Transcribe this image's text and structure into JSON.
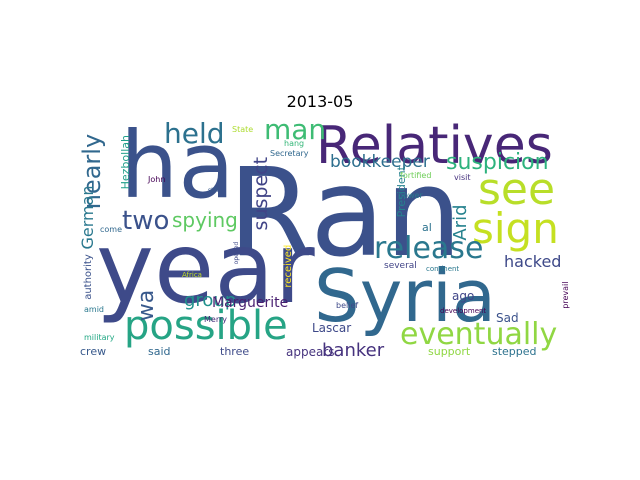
{
  "title": "2013-05",
  "words": [
    {
      "text": "Ran",
      "color": "#3b518b"
    },
    {
      "text": "year",
      "color": "#3e4a89"
    },
    {
      "text": "ha",
      "color": "#3b528b"
    },
    {
      "text": "Syria",
      "color": "#31688e"
    },
    {
      "text": "Relatives",
      "color": "#482777"
    },
    {
      "text": "possible",
      "color": "#26a485"
    },
    {
      "text": "see",
      "color": "#b8de29"
    },
    {
      "text": "sign",
      "color": "#c5e021"
    },
    {
      "text": "release",
      "color": "#2a788e"
    },
    {
      "text": "eventually",
      "color": "#90d743"
    },
    {
      "text": "held",
      "color": "#2c718e"
    },
    {
      "text": "man",
      "color": "#3ebc74"
    },
    {
      "text": "suspicion",
      "color": "#2db27d"
    },
    {
      "text": "bookkeeper",
      "color": "#2e6f8e"
    },
    {
      "text": "two",
      "color": "#3b528b"
    },
    {
      "text": "spying",
      "color": "#5ec962"
    },
    {
      "text": "hacked",
      "color": "#3e4989"
    },
    {
      "text": "nearly",
      "color": "#31688e"
    },
    {
      "text": "suspect",
      "color": "#414487"
    },
    {
      "text": "wa",
      "color": "#38598c"
    },
    {
      "text": "group",
      "color": "#21918c"
    },
    {
      "text": "banker",
      "color": "#46327e"
    },
    {
      "text": "Arid",
      "color": "#26828e"
    },
    {
      "text": "German",
      "color": "#2a788e"
    },
    {
      "text": "Marguerite",
      "color": "#481f70"
    },
    {
      "text": "Lascar",
      "color": "#3e4989"
    },
    {
      "text": "Hezbollah",
      "color": "#1f9e89"
    },
    {
      "text": "appears",
      "color": "#46337e"
    },
    {
      "text": "President",
      "color": "#26828e"
    },
    {
      "text": "ago",
      "color": "#404688"
    },
    {
      "text": "Sad",
      "color": "#3b528b"
    },
    {
      "text": "support",
      "color": "#90d743"
    },
    {
      "text": "stepped",
      "color": "#2c728e"
    },
    {
      "text": "crew",
      "color": "#38598c"
    },
    {
      "text": "said",
      "color": "#31688e"
    },
    {
      "text": "three",
      "color": "#3e4a89"
    },
    {
      "text": "authority",
      "color": "#3b528b"
    },
    {
      "text": "received",
      "color": "#fde725"
    },
    {
      "text": "al",
      "color": "#2c728e"
    },
    {
      "text": "several",
      "color": "#414487"
    },
    {
      "text": "Secretary",
      "color": "#31688e"
    },
    {
      "text": "hang",
      "color": "#35b779"
    },
    {
      "text": "State",
      "color": "#addc30"
    },
    {
      "text": "fortified",
      "color": "#6ece58"
    },
    {
      "text": "visit",
      "color": "#46327e"
    },
    {
      "text": "John",
      "color": "#440154"
    },
    {
      "text": "power",
      "color": "#2a788e"
    },
    {
      "text": "come",
      "color": "#31688e"
    },
    {
      "text": "still",
      "color": "#38598c"
    },
    {
      "text": "amid",
      "color": "#2a788e"
    },
    {
      "text": "Africa",
      "color": "#c2df23"
    },
    {
      "text": "belief",
      "color": "#3e4989"
    },
    {
      "text": "Merry",
      "color": "#472c7a"
    },
    {
      "text": "military",
      "color": "#22a884"
    },
    {
      "text": "prevail",
      "color": "#440154"
    },
    {
      "text": "continent",
      "color": "#2a788e"
    },
    {
      "text": "development",
      "color": "#440154"
    },
    {
      "text": "opened",
      "color": "#3e4989"
    }
  ]
}
